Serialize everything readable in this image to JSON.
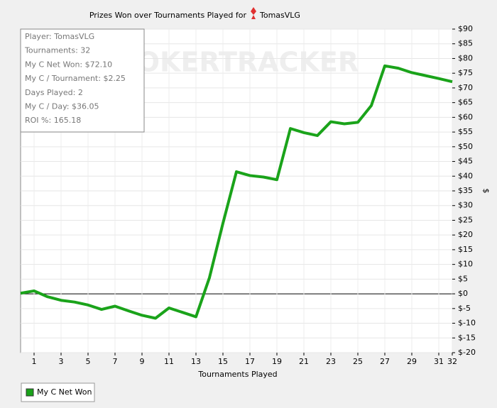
{
  "chart_data": {
    "type": "line",
    "title": "Prizes Won over Tournaments Played for",
    "player": "TomasVLG",
    "x_label": "Tournaments Played",
    "y_label": "$",
    "watermark": "POKERTRACKER",
    "info": [
      "Player: TomasVLG",
      "Tournaments: 32",
      "My C Net Won: $72.10",
      "My C / Tournament: $2.25",
      "Days Played: 2",
      "My C / Day: $36.05",
      "ROI %: 165.18"
    ],
    "x": [
      0,
      1,
      2,
      3,
      4,
      5,
      6,
      7,
      8,
      9,
      10,
      11,
      12,
      13,
      14,
      15,
      16,
      17,
      18,
      19,
      20,
      21,
      22,
      23,
      24,
      25,
      26,
      27,
      28,
      29,
      30,
      31,
      32
    ],
    "series": [
      {
        "name": "My C Net Won",
        "color": "#1aa31a",
        "values": [
          0.2,
          1,
          -1,
          -2.2,
          -2.8,
          -3.8,
          -5.3,
          -4.2,
          -5.8,
          -7.3,
          -8.3,
          -4.8,
          -6.3,
          -7.8,
          5.5,
          24,
          41.5,
          40.2,
          39.7,
          38.8,
          56.2,
          54.8,
          53.8,
          58.5,
          57.8,
          58.3,
          64,
          77.5,
          76.7,
          75.2,
          74.2,
          73.2,
          72.1
        ]
      }
    ],
    "xlim": [
      0,
      32
    ],
    "xticks": [
      1,
      3,
      5,
      7,
      9,
      11,
      13,
      15,
      17,
      19,
      21,
      23,
      25,
      27,
      29,
      31,
      32
    ],
    "ylim": [
      -20,
      90
    ],
    "yticks": [
      {
        "value": -20,
        "label": "$-20"
      },
      {
        "value": -15,
        "label": "$-15"
      },
      {
        "value": -10,
        "label": "$-10"
      },
      {
        "value": -5,
        "label": "$-5"
      },
      {
        "value": 0,
        "label": "$0"
      },
      {
        "value": 5,
        "label": "$5"
      },
      {
        "value": 10,
        "label": "$10"
      },
      {
        "value": 15,
        "label": "$15"
      },
      {
        "value": 20,
        "label": "$20"
      },
      {
        "value": 25,
        "label": "$25"
      },
      {
        "value": 30,
        "label": "$30"
      },
      {
        "value": 35,
        "label": "$35"
      },
      {
        "value": 40,
        "label": "$40"
      },
      {
        "value": 45,
        "label": "$45"
      },
      {
        "value": 50,
        "label": "$50"
      },
      {
        "value": 55,
        "label": "$55"
      },
      {
        "value": 60,
        "label": "$60"
      },
      {
        "value": 65,
        "label": "$65"
      },
      {
        "value": 70,
        "label": "$70"
      },
      {
        "value": 75,
        "label": "$75"
      },
      {
        "value": 80,
        "label": "$80"
      },
      {
        "value": 85,
        "label": "$85"
      },
      {
        "value": 90,
        "label": "$90"
      }
    ],
    "grid": true
  }
}
